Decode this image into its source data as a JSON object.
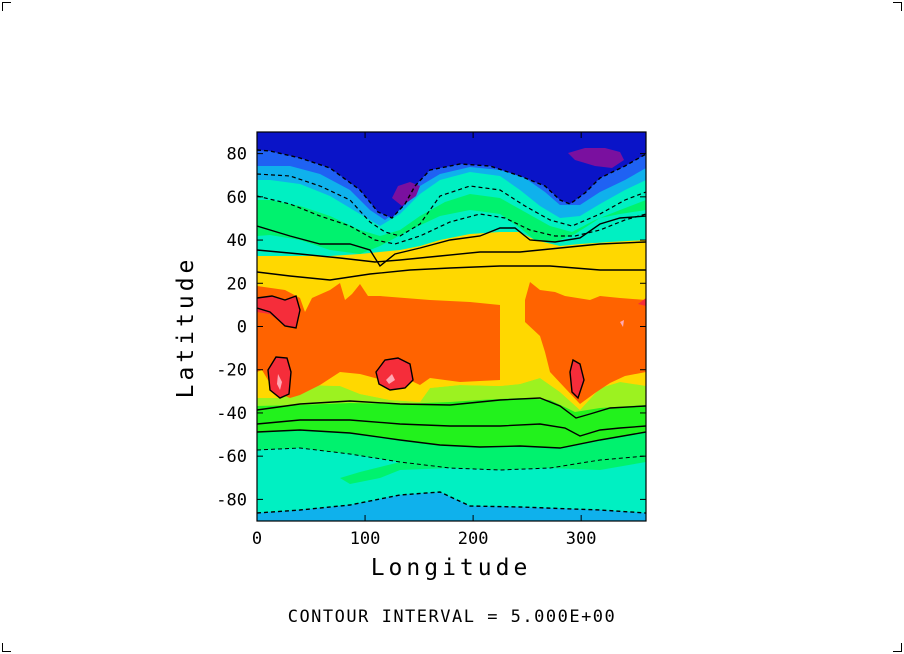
{
  "chart_data": {
    "type": "heatmap",
    "subtype": "filled-contour-map",
    "xlabel": "Longitude",
    "ylabel": "Latitude",
    "xlim": [
      0,
      360
    ],
    "ylim": [
      -90,
      90
    ],
    "x_ticks": [
      0,
      100,
      200,
      300
    ],
    "y_ticks": [
      -80,
      -60,
      -40,
      -20,
      0,
      20,
      40,
      60,
      80
    ],
    "x_tick_labels": [
      "0",
      "100",
      "200",
      "300"
    ],
    "y_tick_labels": [
      "-80",
      "-60",
      "-40",
      "-20",
      "0",
      "20",
      "40",
      "60",
      "80"
    ],
    "footer": "CONTOUR INTERVAL = 5.000E+00",
    "contour_interval": 5.0,
    "grid": false,
    "colors": {
      "level_0": "#7a109f",
      "level_1": "#0a14c8",
      "level_2": "#1f62f3",
      "level_3": "#0fb1ec",
      "level_4": "#00f0c2",
      "level_5": "#00f26e",
      "level_6": "#22f21c",
      "level_7": "#9cf220",
      "level_8": "#ffd800",
      "level_9": "#ff6300",
      "level_10": "#f52d3a",
      "level_11": "#ffa9b4"
    }
  }
}
